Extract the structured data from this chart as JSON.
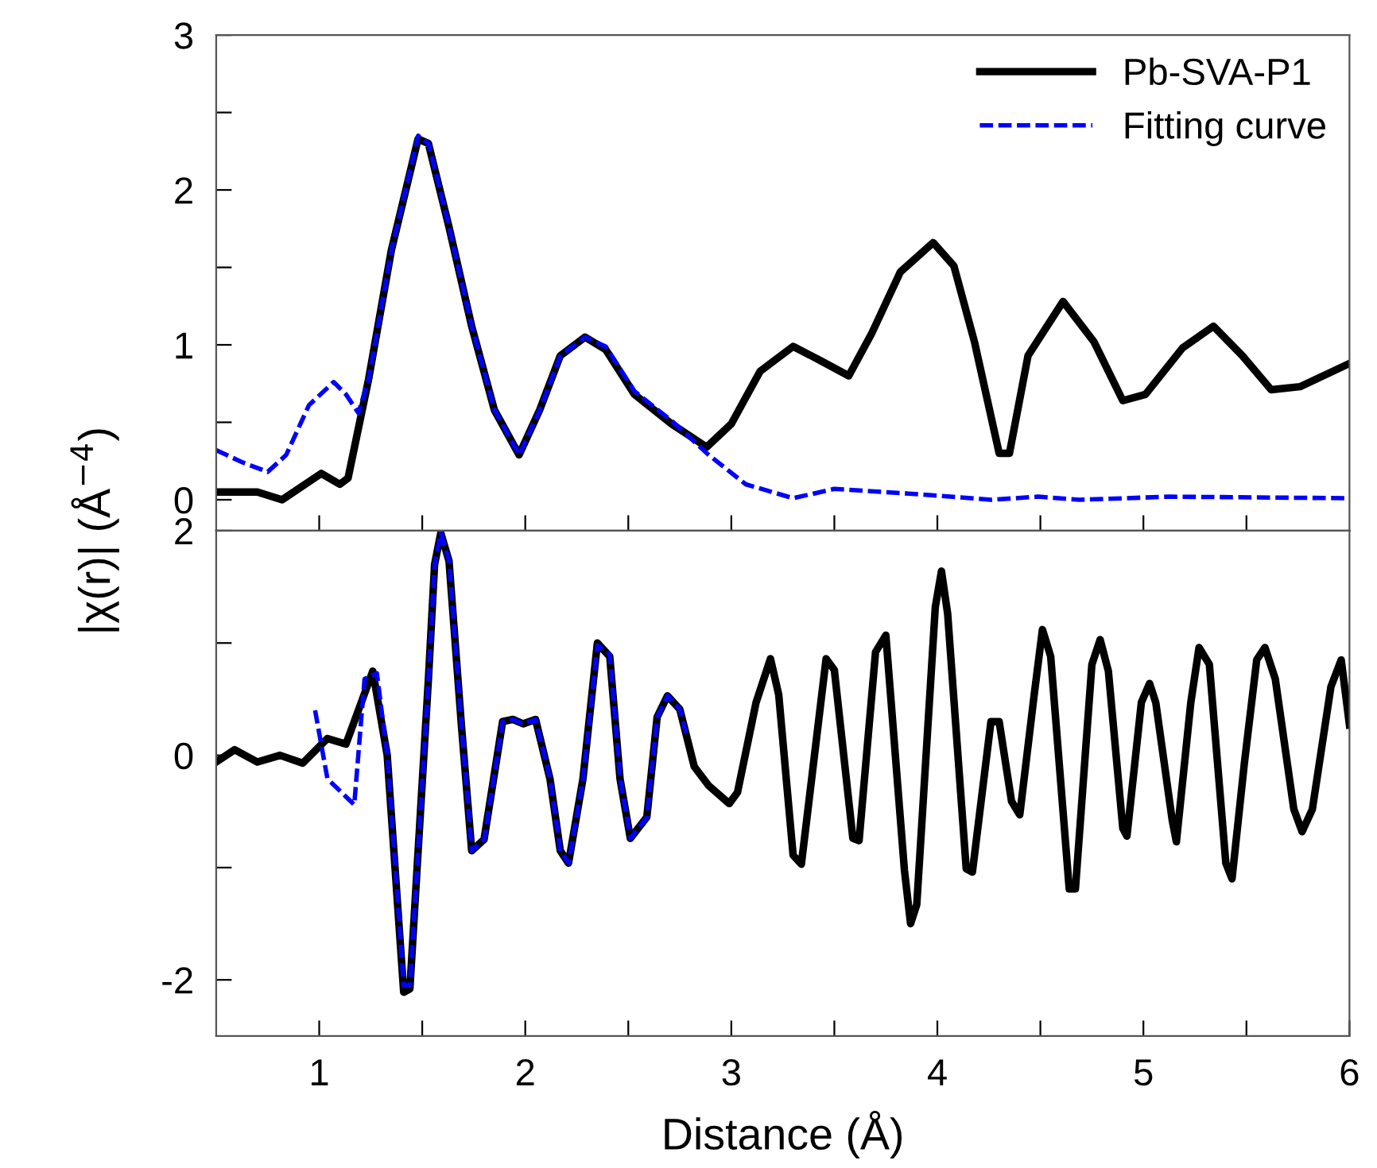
{
  "chart_data": [
    {
      "type": "line",
      "ylabel": "|χ(r)| (Å$^{−4}$)",
      "legend": "top right",
      "tick_labels": "y",
      "grid": false,
      "marker": "none",
      "xlim": [
        0.5,
        6
      ],
      "xticks": [
        {
          "value": 1,
          "label": null
        },
        {
          "value": 1.5,
          "label": null
        },
        {
          "value": 2,
          "label": null
        },
        {
          "value": 2.5,
          "label": null
        },
        {
          "value": 3,
          "label": null
        },
        {
          "value": 3.5,
          "label": null
        },
        {
          "value": 4,
          "label": null
        },
        {
          "value": 4.5,
          "label": null
        },
        {
          "value": 5,
          "label": null
        },
        {
          "value": 5.5,
          "label": null
        }
      ],
      "ylim": [
        -0.2,
        3
      ],
      "yticks": [
        0,
        {
          "value": 0.5,
          "label": null
        },
        1,
        {
          "value": 1.5,
          "label": null
        },
        2,
        {
          "value": 2.5,
          "label": null
        },
        3
      ],
      "series": [
        {
          "name": "Pb-SVA-P1",
          "color": "#000000",
          "line_style": "solid",
          "x": [
            0.5,
            0.7,
            0.82,
            1.01,
            1.1,
            1.14,
            1.24,
            1.35,
            1.48,
            1.53,
            1.63,
            1.74,
            1.85,
            1.97,
            2.07,
            2.17,
            2.29,
            2.39,
            2.53,
            2.71,
            2.88,
            3.0,
            3.14,
            3.3,
            3.43,
            3.57,
            3.68,
            3.82,
            3.98,
            4.08,
            4.18,
            4.3,
            4.35,
            4.44,
            4.61,
            4.76,
            4.9,
            5.01,
            5.19,
            5.34,
            5.48,
            5.62,
            5.76,
            6.0
          ],
          "values": [
            0.05,
            0.05,
            0.0,
            0.17,
            0.1,
            0.14,
            0.78,
            1.61,
            2.33,
            2.3,
            1.76,
            1.12,
            0.58,
            0.29,
            0.58,
            0.93,
            1.05,
            0.97,
            0.68,
            0.49,
            0.34,
            0.49,
            0.83,
            0.99,
            0.9,
            0.8,
            1.07,
            1.47,
            1.66,
            1.51,
            1.02,
            0.3,
            0.3,
            0.93,
            1.28,
            1.02,
            0.64,
            0.68,
            0.98,
            1.12,
            0.93,
            0.71,
            0.73,
            0.88
          ]
        },
        {
          "name": "Fitting curve",
          "color": "#0000ff",
          "line_style": "dashed",
          "x": [
            0.5,
            0.63,
            0.75,
            0.84,
            0.95,
            1.07,
            1.13,
            1.19,
            1.24,
            1.35,
            1.48,
            1.53,
            1.63,
            1.74,
            1.85,
            1.97,
            2.07,
            2.17,
            2.29,
            2.39,
            2.53,
            2.71,
            2.89,
            3.07,
            3.3,
            3.5,
            3.86,
            4.26,
            4.49,
            4.69,
            5.13,
            6.0
          ],
          "values": [
            0.32,
            0.24,
            0.18,
            0.29,
            0.61,
            0.76,
            0.68,
            0.56,
            0.78,
            1.61,
            2.35,
            2.3,
            1.76,
            1.12,
            0.58,
            0.29,
            0.58,
            0.93,
            1.05,
            0.99,
            0.7,
            0.51,
            0.29,
            0.1,
            0.01,
            0.07,
            0.04,
            0.0,
            0.02,
            0.0,
            0.02,
            0.01
          ]
        }
      ]
    },
    {
      "type": "line",
      "xlabel": "Distance (Å)",
      "legend": false,
      "grid": false,
      "marker": "none",
      "xlim": [
        0.5,
        6
      ],
      "xticks": [
        1,
        {
          "value": 1.5,
          "label": null
        },
        2,
        {
          "value": 2.5,
          "label": null
        },
        3,
        {
          "value": 3.5,
          "label": null
        },
        4,
        {
          "value": 4.5,
          "label": null
        },
        5,
        {
          "value": 5.5,
          "label": null
        },
        6
      ],
      "ylim": [
        -2.5,
        2
      ],
      "yticks": [
        -2,
        {
          "value": -1,
          "label": null
        },
        0,
        {
          "value": 1,
          "label": null
        },
        2
      ],
      "series": [
        {
          "color": "#000000",
          "line_style": "solid",
          "x": [
            0.5,
            0.59,
            0.7,
            0.81,
            0.92,
            1.04,
            1.13,
            1.26,
            1.33,
            1.41,
            1.44,
            1.53,
            1.56,
            1.59,
            1.63,
            1.69,
            1.74,
            1.8,
            1.89,
            1.94,
            1.99,
            2.05,
            2.12,
            2.17,
            2.21,
            2.28,
            2.35,
            2.41,
            2.46,
            2.51,
            2.59,
            2.64,
            2.69,
            2.75,
            2.82,
            2.89,
            2.99,
            3.03,
            3.12,
            3.19,
            3.23,
            3.3,
            3.34,
            3.46,
            3.5,
            3.59,
            3.62,
            3.7,
            3.75,
            3.84,
            3.87,
            3.9,
            3.99,
            4.02,
            4.05,
            4.14,
            4.17,
            4.26,
            4.3,
            4.36,
            4.4,
            4.47,
            4.51,
            4.55,
            4.64,
            4.67,
            4.75,
            4.79,
            4.83,
            4.9,
            4.92,
            4.99,
            5.03,
            5.06,
            5.14,
            5.16,
            5.23,
            5.27,
            5.32,
            5.4,
            5.43,
            5.49,
            5.55,
            5.59,
            5.64,
            5.73,
            5.77,
            5.82,
            5.91,
            5.96,
            6.0
          ],
          "values": [
            -0.06,
            0.05,
            -0.06,
            0.0,
            -0.07,
            0.15,
            0.1,
            0.75,
            0.0,
            -2.11,
            -2.08,
            0.68,
            1.7,
            1.98,
            1.73,
            0.27,
            -0.85,
            -0.75,
            0.3,
            0.32,
            0.28,
            0.32,
            -0.21,
            -0.85,
            -0.96,
            -0.21,
            1.0,
            0.88,
            -0.21,
            -0.74,
            -0.55,
            0.34,
            0.53,
            0.41,
            -0.1,
            -0.27,
            -0.43,
            -0.33,
            0.47,
            0.86,
            0.54,
            -0.89,
            -0.97,
            0.86,
            0.76,
            -0.74,
            -0.76,
            0.92,
            1.07,
            -1.02,
            -1.5,
            -1.33,
            1.32,
            1.64,
            1.26,
            -1.01,
            -1.04,
            0.3,
            0.3,
            -0.41,
            -0.53,
            0.54,
            1.12,
            0.88,
            -1.19,
            -1.19,
            0.81,
            1.03,
            0.75,
            -0.65,
            -0.72,
            0.47,
            0.64,
            0.47,
            -0.58,
            -0.77,
            0.47,
            0.96,
            0.81,
            -0.96,
            -1.1,
            -0.07,
            0.85,
            0.96,
            0.68,
            -0.48,
            -0.68,
            -0.48,
            0.61,
            0.85,
            0.27
          ]
        },
        {
          "color": "#0000ff",
          "line_style": "dashed",
          "x": [
            0.98,
            1.04,
            1.17,
            1.22,
            1.28,
            1.33,
            1.41,
            1.44,
            1.53,
            1.56,
            1.59,
            1.63,
            1.69,
            1.74,
            1.8,
            1.89,
            1.94,
            1.99,
            2.05,
            2.12,
            2.17,
            2.21,
            2.28,
            2.35,
            2.41,
            2.46,
            2.51,
            2.59,
            2.64,
            2.69,
            2.75,
            2.78
          ],
          "values": [
            0.4,
            -0.21,
            -0.44,
            0.68,
            0.73,
            0.0,
            -2.05,
            -2.05,
            0.68,
            1.7,
            1.98,
            1.73,
            0.27,
            -0.85,
            -0.75,
            0.3,
            0.32,
            0.28,
            0.32,
            -0.21,
            -0.85,
            -0.96,
            -0.21,
            0.98,
            0.9,
            -0.21,
            -0.74,
            -0.55,
            0.34,
            0.53,
            0.41,
            0.2
          ]
        }
      ]
    }
  ]
}
